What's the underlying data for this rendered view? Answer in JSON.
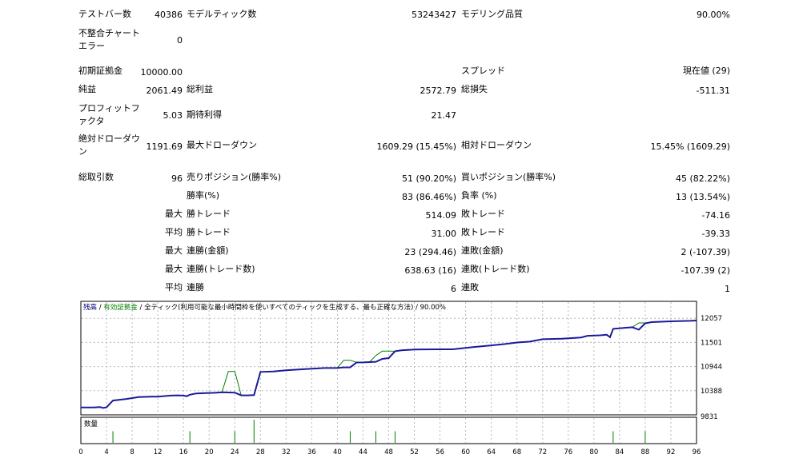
{
  "stats": {
    "row1": {
      "bars_label": "テストバー数",
      "bars_value": "40386",
      "ticks_label": "モデルティック数",
      "ticks_value": "53243427",
      "quality_label": "モデリング品質",
      "quality_value": "90.00%"
    },
    "row2": {
      "mismatch_label": "不整合チャートエラー",
      "mismatch_value": "0"
    },
    "row3": {
      "deposit_label": "初期証拠金",
      "deposit_value": "10000.00",
      "spread_label": "スプレッド",
      "spread_value": "現在値 (29)"
    },
    "row4": {
      "net_label": "純益",
      "net_value": "2061.49",
      "gross_profit_label": "総利益",
      "gross_profit_value": "2572.79",
      "gross_loss_label": "総損失",
      "gross_loss_value": "-511.31"
    },
    "row5": {
      "pf_label": "プロフィットファクタ",
      "pf_value": "5.03",
      "expected_label": "期待利得",
      "expected_value": "21.47"
    },
    "row6": {
      "abs_dd_label": "絶対ドローダウン",
      "abs_dd_value": "1191.69",
      "max_dd_label": "最大ドローダウン",
      "max_dd_value": "1609.29 (15.45%)",
      "rel_dd_label": "相対ドローダウン",
      "rel_dd_value": "15.45% (1609.29)"
    },
    "row7": {
      "total_label": "総取引数",
      "total_value": "96",
      "short_label": "売りポジション(勝率%)",
      "short_value": "51 (90.20%)",
      "long_label": "買いポジション(勝率%)",
      "long_value": "45 (82.22%)"
    },
    "row8": {
      "win_rate_label": "勝率(%)",
      "win_rate_value": "83 (86.46%)",
      "loss_rate_label": "負率 (%)",
      "loss_rate_value": "13 (13.54%)"
    },
    "row9": {
      "prefix": "最大",
      "win_label": "勝トレード",
      "win_value": "514.09",
      "loss_label": "敗トレード",
      "loss_value": "-74.16"
    },
    "row10": {
      "prefix": "平均",
      "win_label": "勝トレード",
      "win_value": "31.00",
      "loss_label": "敗トレード",
      "loss_value": "-39.33"
    },
    "row11": {
      "prefix": "最大",
      "win_label": "連勝(金額)",
      "win_value": "23 (294.46)",
      "loss_label": "連敗(金額)",
      "loss_value": "2 (-107.39)"
    },
    "row12": {
      "prefix": "最大",
      "win_label": "連勝(トレード数)",
      "win_value": "638.63 (16)",
      "loss_label": "連敗(トレード数)",
      "loss_value": "-107.39 (2)"
    },
    "row13": {
      "prefix": "平均",
      "win_label": "連勝",
      "win_value": "6",
      "loss_label": "連敗",
      "loss_value": "1"
    }
  },
  "chart": {
    "legend_balance": "残高",
    "legend_equity": "有効証拠金",
    "legend_ticks": "全ティック(利用可能な最小時間枠を使いすべてのティックを生成する、最も正確な方法)",
    "legend_quality": "90.00%",
    "legend_sep": "/",
    "volume_label": "数量",
    "colors": {
      "balance": "#1a1a9c",
      "equity": "#008000",
      "legend_balance": "#00007f",
      "legend_equity": "#008000",
      "grid": "#b8b8b8"
    }
  },
  "chart_data": {
    "type": "line",
    "ylim": [
      9831,
      12300
    ],
    "y_ticks": [
      "12057",
      "11501",
      "10944",
      "10388",
      "9831"
    ],
    "x_ticks": [
      "0",
      "4",
      "8",
      "12",
      "16",
      "20",
      "24",
      "28",
      "32",
      "36",
      "40",
      "44",
      "48",
      "52",
      "56",
      "60",
      "64",
      "68",
      "72",
      "76",
      "80",
      "84",
      "88",
      "92",
      "96"
    ],
    "series": [
      {
        "name": "残高",
        "x": [
          0,
          2,
          3,
          3.5,
          4,
          5,
          7,
          9,
          11,
          12,
          14,
          15,
          16,
          16.5,
          17,
          18,
          21,
          22,
          24,
          25,
          26,
          27,
          28,
          30,
          32,
          35,
          38,
          40,
          41,
          42,
          43,
          44,
          45,
          46,
          47,
          48,
          49,
          50,
          52,
          56,
          58,
          60,
          61,
          64,
          66,
          68,
          70,
          72,
          75,
          78,
          79,
          81,
          82,
          82.5,
          83,
          85,
          86,
          87,
          88,
          89,
          92,
          95,
          96
        ],
        "y": [
          10003,
          10003,
          10010,
          9990,
          10004,
          10160,
          10196,
          10240,
          10250,
          10250,
          10275,
          10280,
          10275,
          10260,
          10295,
          10325,
          10340,
          10350,
          10343,
          10280,
          10280,
          10286,
          10820,
          10830,
          10858,
          10886,
          10910,
          10910,
          10925,
          10925,
          11037,
          11040,
          11047,
          11055,
          11120,
          11139,
          11297,
          11320,
          11337,
          11342,
          11342,
          11375,
          11390,
          11432,
          11462,
          11499,
          11518,
          11574,
          11585,
          11614,
          11654,
          11664,
          11678,
          11620,
          11814,
          11840,
          11850,
          11793,
          11940,
          11969,
          11986,
          11997,
          12005
        ]
      },
      {
        "name": "有効証拠金",
        "x": [
          0,
          2,
          3,
          3.5,
          4,
          5,
          7,
          9,
          11,
          12,
          14,
          15,
          16,
          16.5,
          17,
          18,
          21,
          22,
          23,
          24,
          25,
          26,
          27,
          28,
          30,
          32,
          35,
          38,
          40,
          41,
          42,
          43,
          44,
          45,
          46,
          47,
          48,
          49,
          50,
          52,
          56,
          58,
          60,
          61,
          64,
          66,
          68,
          70,
          72,
          75,
          78,
          79,
          81,
          82,
          82.5,
          83,
          85,
          86,
          87,
          88,
          89,
          92,
          95,
          96
        ],
        "y": [
          10003,
          10003,
          10010,
          9990,
          10004,
          10160,
          10196,
          10240,
          10250,
          10250,
          10275,
          10280,
          10275,
          10260,
          10295,
          10325,
          10340,
          10350,
          10830,
          10830,
          10280,
          10280,
          10286,
          10820,
          10830,
          10858,
          10886,
          10910,
          10910,
          11090,
          11090,
          11037,
          11040,
          11047,
          11200,
          11300,
          11300,
          11297,
          11320,
          11337,
          11342,
          11342,
          11375,
          11390,
          11432,
          11462,
          11499,
          11518,
          11574,
          11585,
          11614,
          11654,
          11664,
          11678,
          11620,
          11814,
          11840,
          11850,
          11950,
          11950,
          11969,
          11986,
          11997,
          12005
        ]
      }
    ],
    "volume": {
      "x": [
        5,
        17,
        24,
        27,
        42,
        46,
        49,
        83,
        88
      ],
      "v": [
        1,
        1,
        1,
        2,
        1,
        1,
        1,
        1,
        1
      ]
    }
  }
}
